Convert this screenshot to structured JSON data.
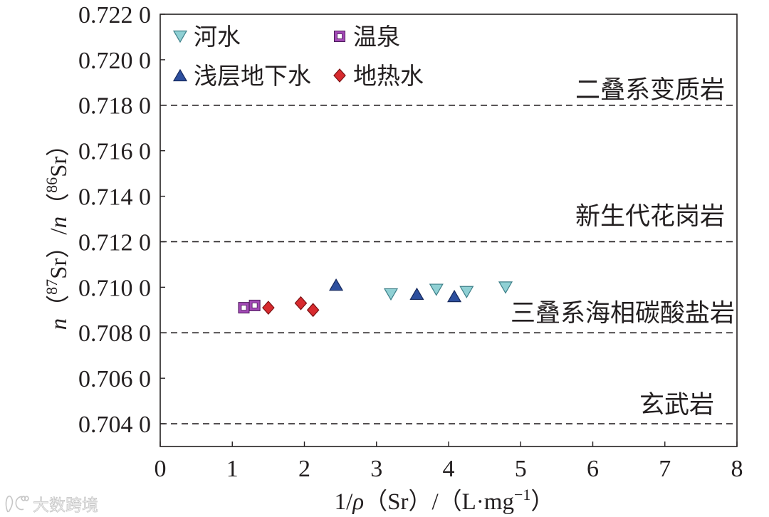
{
  "chart_data": {
    "type": "scatter",
    "xlabel": [
      {
        "text": "1/"
      },
      {
        "text": "ρ",
        "italic": true
      },
      {
        "text": "（Sr）/（L·mg"
      },
      {
        "text": "−1",
        "sup": true
      },
      {
        "text": "）"
      }
    ],
    "ylabel": [
      {
        "text": "n",
        "italic": true
      },
      {
        "text": "（"
      },
      {
        "text": "87",
        "sup": true
      },
      {
        "text": "Sr）/"
      },
      {
        "text": "n",
        "italic": true
      },
      {
        "text": "（"
      },
      {
        "text": "86",
        "sup": true
      },
      {
        "text": "Sr）"
      }
    ],
    "xlim": [
      0,
      8
    ],
    "ylim": [
      0.703,
      0.722
    ],
    "xticks": [
      0,
      1,
      2,
      3,
      4,
      5,
      6,
      7,
      8
    ],
    "xtick_labels": [
      "0",
      "1",
      "2",
      "3",
      "4",
      "5",
      "6",
      "7",
      "8"
    ],
    "yticks": [
      0.704,
      0.706,
      0.708,
      0.71,
      0.712,
      0.714,
      0.716,
      0.718,
      0.72,
      0.722
    ],
    "ytick_labels": [
      "0.704 0",
      "0.706 0",
      "0.708 0",
      "0.710 0",
      "0.712 0",
      "0.714 0",
      "0.716 0",
      "0.718 0",
      "0.720 0",
      "0.722 0"
    ],
    "grid": false,
    "legend_position": "top-left",
    "series": [
      {
        "name": "河水",
        "marker": "triangle-down",
        "color": "#8fd0d4",
        "edge": "#3d7f88",
        "x": [
          3.2,
          3.83,
          4.25,
          4.79
        ],
        "y": [
          0.7097,
          0.7099,
          0.7098,
          0.71
        ]
      },
      {
        "name": "温泉",
        "marker": "square-open",
        "color": "#a34ab6",
        "edge": "#4b1a5a",
        "x": [
          1.16,
          1.31
        ],
        "y": [
          0.7091,
          0.7092
        ]
      },
      {
        "name": "浅层地下水",
        "marker": "triangle-up",
        "color": "#2d4f9e",
        "edge": "#16295e",
        "x": [
          2.44,
          3.56,
          4.08
        ],
        "y": [
          0.7101,
          0.7097,
          0.7096
        ]
      },
      {
        "name": "地热水",
        "marker": "diamond",
        "color": "#d72a2e",
        "edge": "#7a1012",
        "x": [
          1.5,
          1.95,
          2.12
        ],
        "y": [
          0.7091,
          0.7093,
          0.709
        ]
      }
    ],
    "reference_lines": [
      {
        "y": 0.718,
        "label": "二叠系变质岩"
      },
      {
        "y": 0.712,
        "label": "新生代花岗岩"
      },
      {
        "y": 0.708,
        "label": "三叠系海相碳酸盐岩"
      },
      {
        "y": 0.704,
        "label": "玄武岩"
      }
    ]
  },
  "watermark": "大数跨境"
}
